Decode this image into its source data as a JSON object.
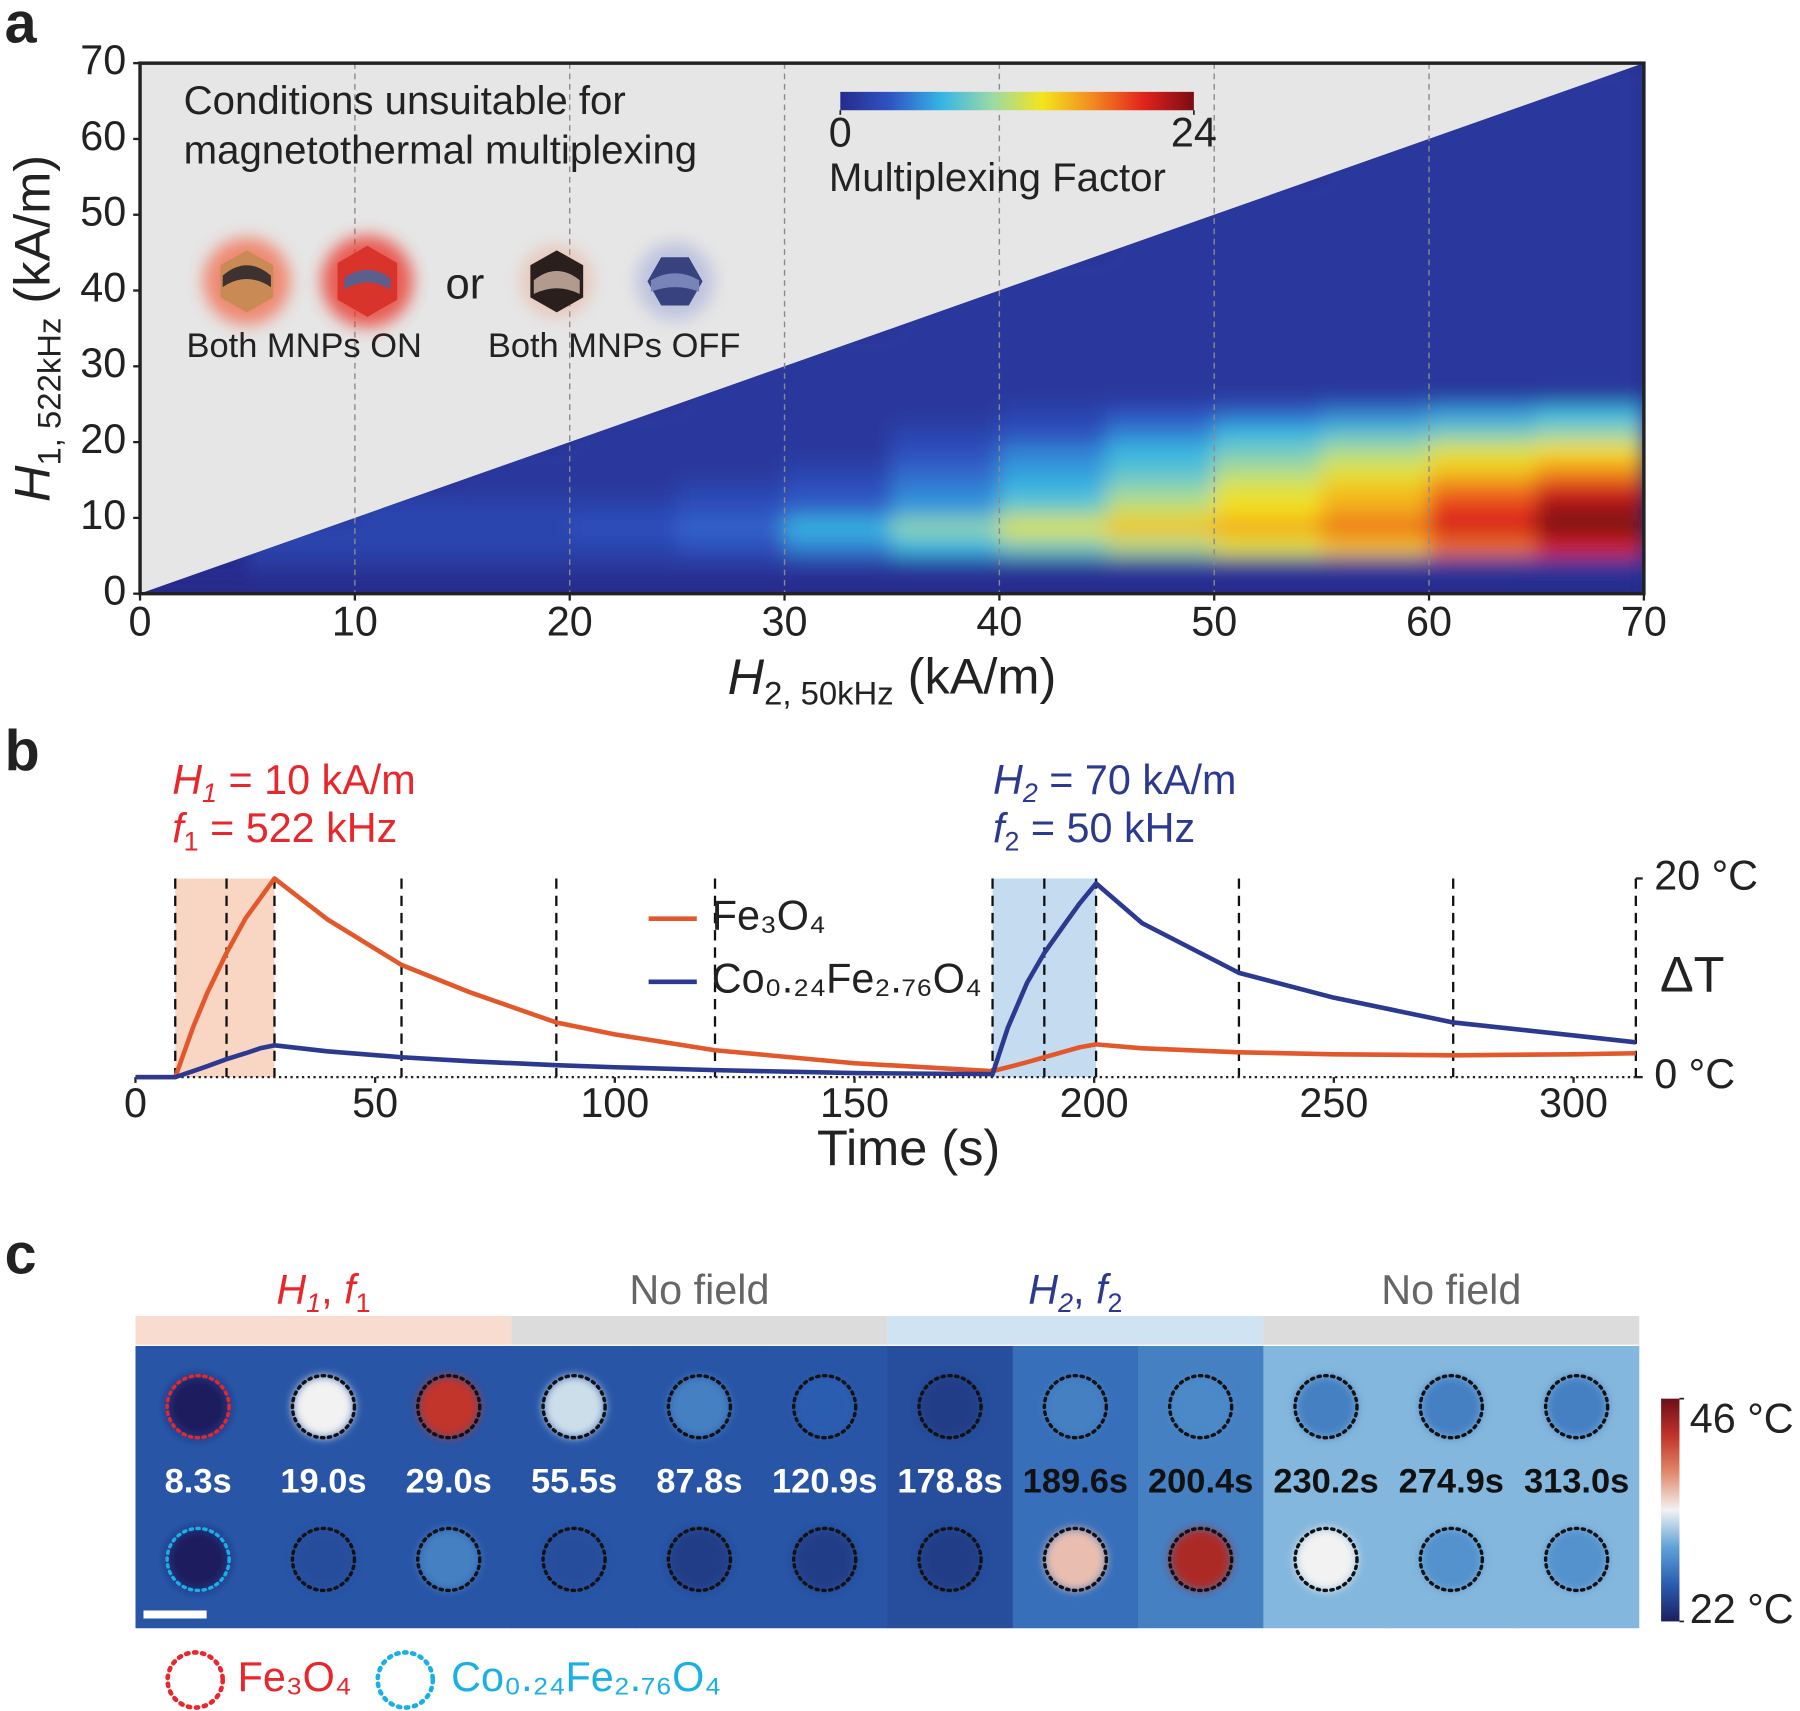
{
  "chart_data": [
    {
      "panel": "a",
      "type": "heatmap",
      "annotation": [
        "Conditions unsuitable for",
        "magnetothermal multiplexing"
      ],
      "icon_connector": "or",
      "icon_labels": [
        "Both MNPs ON",
        "Both MNPs OFF"
      ],
      "x_label": [
        {
          "text": "H",
          "italic": true
        },
        {
          "text": "2, 50kHz",
          "sub": true
        },
        {
          "text": " (kA/m)"
        }
      ],
      "y_label": [
        {
          "text": "H",
          "italic": true
        },
        {
          "text": "1, 522kHz",
          "sub": true
        },
        {
          "text": " (kA/m)"
        }
      ],
      "xlim": [
        0,
        70
      ],
      "ylim": [
        0,
        70
      ],
      "xticks": [
        0,
        10,
        20,
        30,
        40,
        50,
        60,
        70
      ],
      "yticks": [
        0,
        10,
        20,
        30,
        40,
        50,
        60,
        70
      ],
      "grid": true,
      "x_bins": [
        0,
        5,
        10,
        15,
        20,
        25,
        30,
        35,
        40,
        45,
        50,
        55,
        60,
        65,
        70
      ],
      "y_bins": [
        0,
        2.5,
        5,
        7.5,
        10,
        12.5,
        15,
        17.5,
        20,
        22.5,
        25,
        35,
        45,
        55,
        70
      ],
      "values": [
        [
          0,
          0,
          0,
          0,
          0,
          0,
          0,
          0,
          0,
          0,
          0,
          0,
          0,
          0
        ],
        [
          0,
          1,
          1,
          1,
          1,
          1,
          1,
          1,
          1,
          1,
          1,
          1,
          1,
          1
        ],
        [
          null,
          2,
          2,
          2,
          2,
          3,
          5,
          7,
          9,
          11,
          13,
          15,
          18,
          21
        ],
        [
          null,
          2,
          2,
          2,
          3,
          4,
          7,
          10,
          13,
          15,
          16,
          18,
          21,
          24
        ],
        [
          null,
          null,
          2,
          2,
          2,
          3,
          4,
          6,
          9,
          12,
          14,
          16,
          20,
          23
        ],
        [
          null,
          null,
          1,
          1,
          1,
          2,
          3,
          5,
          7,
          10,
          13,
          15,
          18,
          21
        ],
        [
          null,
          null,
          null,
          1,
          1,
          1,
          2,
          4,
          6,
          8,
          11,
          13,
          15,
          17
        ],
        [
          null,
          null,
          null,
          1,
          1,
          1,
          1,
          3,
          5,
          7,
          9,
          11,
          13,
          14
        ],
        [
          null,
          null,
          null,
          null,
          1,
          1,
          1,
          2,
          3,
          5,
          7,
          8,
          9,
          10
        ],
        [
          null,
          null,
          null,
          null,
          1,
          1,
          1,
          1,
          2,
          3,
          4,
          5,
          6,
          7
        ],
        [
          null,
          null,
          null,
          null,
          null,
          1,
          1,
          1,
          1,
          1,
          1,
          1,
          1,
          1
        ],
        [
          null,
          null,
          null,
          null,
          null,
          null,
          null,
          1,
          1,
          1,
          1,
          1,
          1,
          1
        ],
        [
          null,
          null,
          null,
          null,
          null,
          null,
          null,
          null,
          null,
          1,
          1,
          1,
          1,
          1
        ],
        [
          null,
          null,
          null,
          null,
          null,
          null,
          null,
          null,
          null,
          null,
          null,
          1,
          1,
          1
        ]
      ],
      "masked_color": "#e6e6e6",
      "colorbar_label": "Multiplexing Factor",
      "clim": [
        0,
        24
      ],
      "colorbar_ticks": [
        0,
        24
      ],
      "colormap": [
        "#262b8c",
        "#2f55c5",
        "#35b5e5",
        "#9ad9a8",
        "#f4e51c",
        "#f28a1f",
        "#e2231d",
        "#7a0d12"
      ]
    },
    {
      "panel": "b",
      "type": "line",
      "x": [
        0,
        8.3,
        12,
        15,
        19,
        23,
        26,
        29,
        40,
        55.5,
        70,
        87.8,
        100,
        120.9,
        150,
        178.8,
        182,
        186,
        189.6,
        194,
        197,
        200.4,
        210,
        230.2,
        250,
        274.9,
        300,
        313
      ],
      "series": [
        {
          "name": "Fe₃O₄",
          "color": "#e2582b",
          "values": [
            0,
            0,
            5,
            8.5,
            12.5,
            16,
            18,
            20,
            15.9,
            11.3,
            8.5,
            5.5,
            4.3,
            2.7,
            1.4,
            0.6,
            1.0,
            1.5,
            2.0,
            2.6,
            3.0,
            3.3,
            2.9,
            2.5,
            2.3,
            2.2,
            2.3,
            2.4
          ]
        },
        {
          "name": "Co₀.₂₄Fe₂.₇₆O₄",
          "color": "#2b3990",
          "values": [
            0,
            0,
            0.6,
            1.1,
            1.8,
            2.4,
            2.9,
            3.2,
            2.6,
            2.0,
            1.6,
            1.2,
            1.0,
            0.7,
            0.4,
            0.3,
            5,
            9.5,
            12.5,
            15.5,
            17.5,
            19.5,
            15.5,
            10.5,
            8.0,
            5.5,
            4.2,
            3.5
          ]
        }
      ],
      "xlim": [
        0,
        313
      ],
      "ylim": [
        0,
        20
      ],
      "xticks": [
        0,
        50,
        100,
        150,
        200,
        250,
        300
      ],
      "yticks": [
        {
          "value": 0,
          "label": "0 °C"
        },
        {
          "value": 20,
          "label": "20 °C"
        }
      ],
      "x_label": "Time (s)",
      "y_label": "ΔT",
      "annotations": [
        {
          "color": "#e8262b",
          "lines": [
            [
              {
                "text": "H",
                "italic": true
              },
              {
                "text": "1",
                "sub": true,
                "italic": true
              },
              {
                "text": " = 10 kA/m"
              }
            ],
            [
              {
                "text": "f",
                "italic": true
              },
              {
                "text": "1",
                "sub": true
              },
              {
                "text": " = 522 kHz"
              }
            ]
          ]
        },
        {
          "color": "#2b3990",
          "lines": [
            [
              {
                "text": "H",
                "italic": true
              },
              {
                "text": "2",
                "sub": true,
                "italic": true
              },
              {
                "text": " = 70 kA/m"
              }
            ],
            [
              {
                "text": "f",
                "italic": true
              },
              {
                "text": "2",
                "sub": true
              },
              {
                "text": " = 50 kHz"
              }
            ]
          ]
        }
      ],
      "shade_colors": [
        "#f9d6c4",
        null,
        "#c5dcf0",
        null
      ]
    },
    {
      "panel": "c",
      "type": "thermal-frames",
      "phases": [
        {
          "label": [
            {
              "text": "H",
              "italic": true
            },
            {
              "text": "1",
              "sub": true,
              "italic": true
            },
            {
              "text": ", "
            },
            {
              "text": "f",
              "italic": true
            },
            {
              "text": "1",
              "sub": true
            }
          ],
          "color": "#f9dcd0",
          "text_color": "#e8262b"
        },
        {
          "label": [
            {
              "text": "No field"
            }
          ],
          "color": "#dcdcdc",
          "text_color": "#666666"
        },
        {
          "label": [
            {
              "text": "H",
              "italic": true
            },
            {
              "text": "2",
              "sub": true,
              "italic": true
            },
            {
              "text": ", "
            },
            {
              "text": "f",
              "italic": true
            },
            {
              "text": "2",
              "sub": true
            }
          ],
          "color": "#cfe3f3",
          "text_color": "#2b3990"
        },
        {
          "label": [
            {
              "text": "No field"
            }
          ],
          "color": "#dcdcdc",
          "text_color": "#666666"
        }
      ],
      "times": [
        {
          "value": 8.3,
          "label": "8.3s"
        },
        {
          "value": 19,
          "label": "19.0s"
        },
        {
          "value": 29,
          "label": "29.0s"
        },
        {
          "value": 55.5,
          "label": "55.5s"
        },
        {
          "value": 87.8,
          "label": "87.8s"
        },
        {
          "value": 120.9,
          "label": "120.9s"
        },
        {
          "value": 178.8,
          "label": "178.8s"
        },
        {
          "value": 189.6,
          "label": "189.6s"
        },
        {
          "value": 200.4,
          "label": "200.4s"
        },
        {
          "value": 230.2,
          "label": "230.2s"
        },
        {
          "value": 274.9,
          "label": "274.9s"
        },
        {
          "value": 313,
          "label": "313.0s"
        }
      ],
      "label_colors": [
        "#ffffff",
        "#ffffff",
        "#ffffff",
        "#ffffff",
        "#ffffff",
        "#ffffff",
        "#ffffff",
        "#111111",
        "#111111",
        "#111111",
        "#111111",
        "#111111"
      ],
      "background": [
        25.5,
        25.5,
        25.5,
        25.5,
        25.5,
        25.5,
        25,
        27,
        28,
        31,
        31,
        31
      ],
      "series": [
        {
          "name": "Fe₃O₄",
          "color": "#e8262b",
          "values": [
            22,
            34,
            42,
            33,
            28,
            26,
            24,
            28,
            28.5,
            28,
            28,
            28
          ]
        },
        {
          "name": "Co₀.₂₄Fe₂.₇₆O₄",
          "color": "#1ab0e6",
          "values": [
            22,
            25,
            28,
            25,
            24,
            24,
            24,
            36,
            43,
            34,
            29,
            29
          ]
        }
      ],
      "clim": [
        22,
        46
      ],
      "colorbar_ticks": [
        {
          "value": 22,
          "label": "22 °C"
        },
        {
          "value": 46,
          "label": "46 °C"
        }
      ],
      "colormap": [
        "#1b1f5e",
        "#2a5db0",
        "#5fa3d6",
        "#f2f2f2",
        "#e08a6e",
        "#c1342a",
        "#6b0f1a"
      ]
    }
  ]
}
